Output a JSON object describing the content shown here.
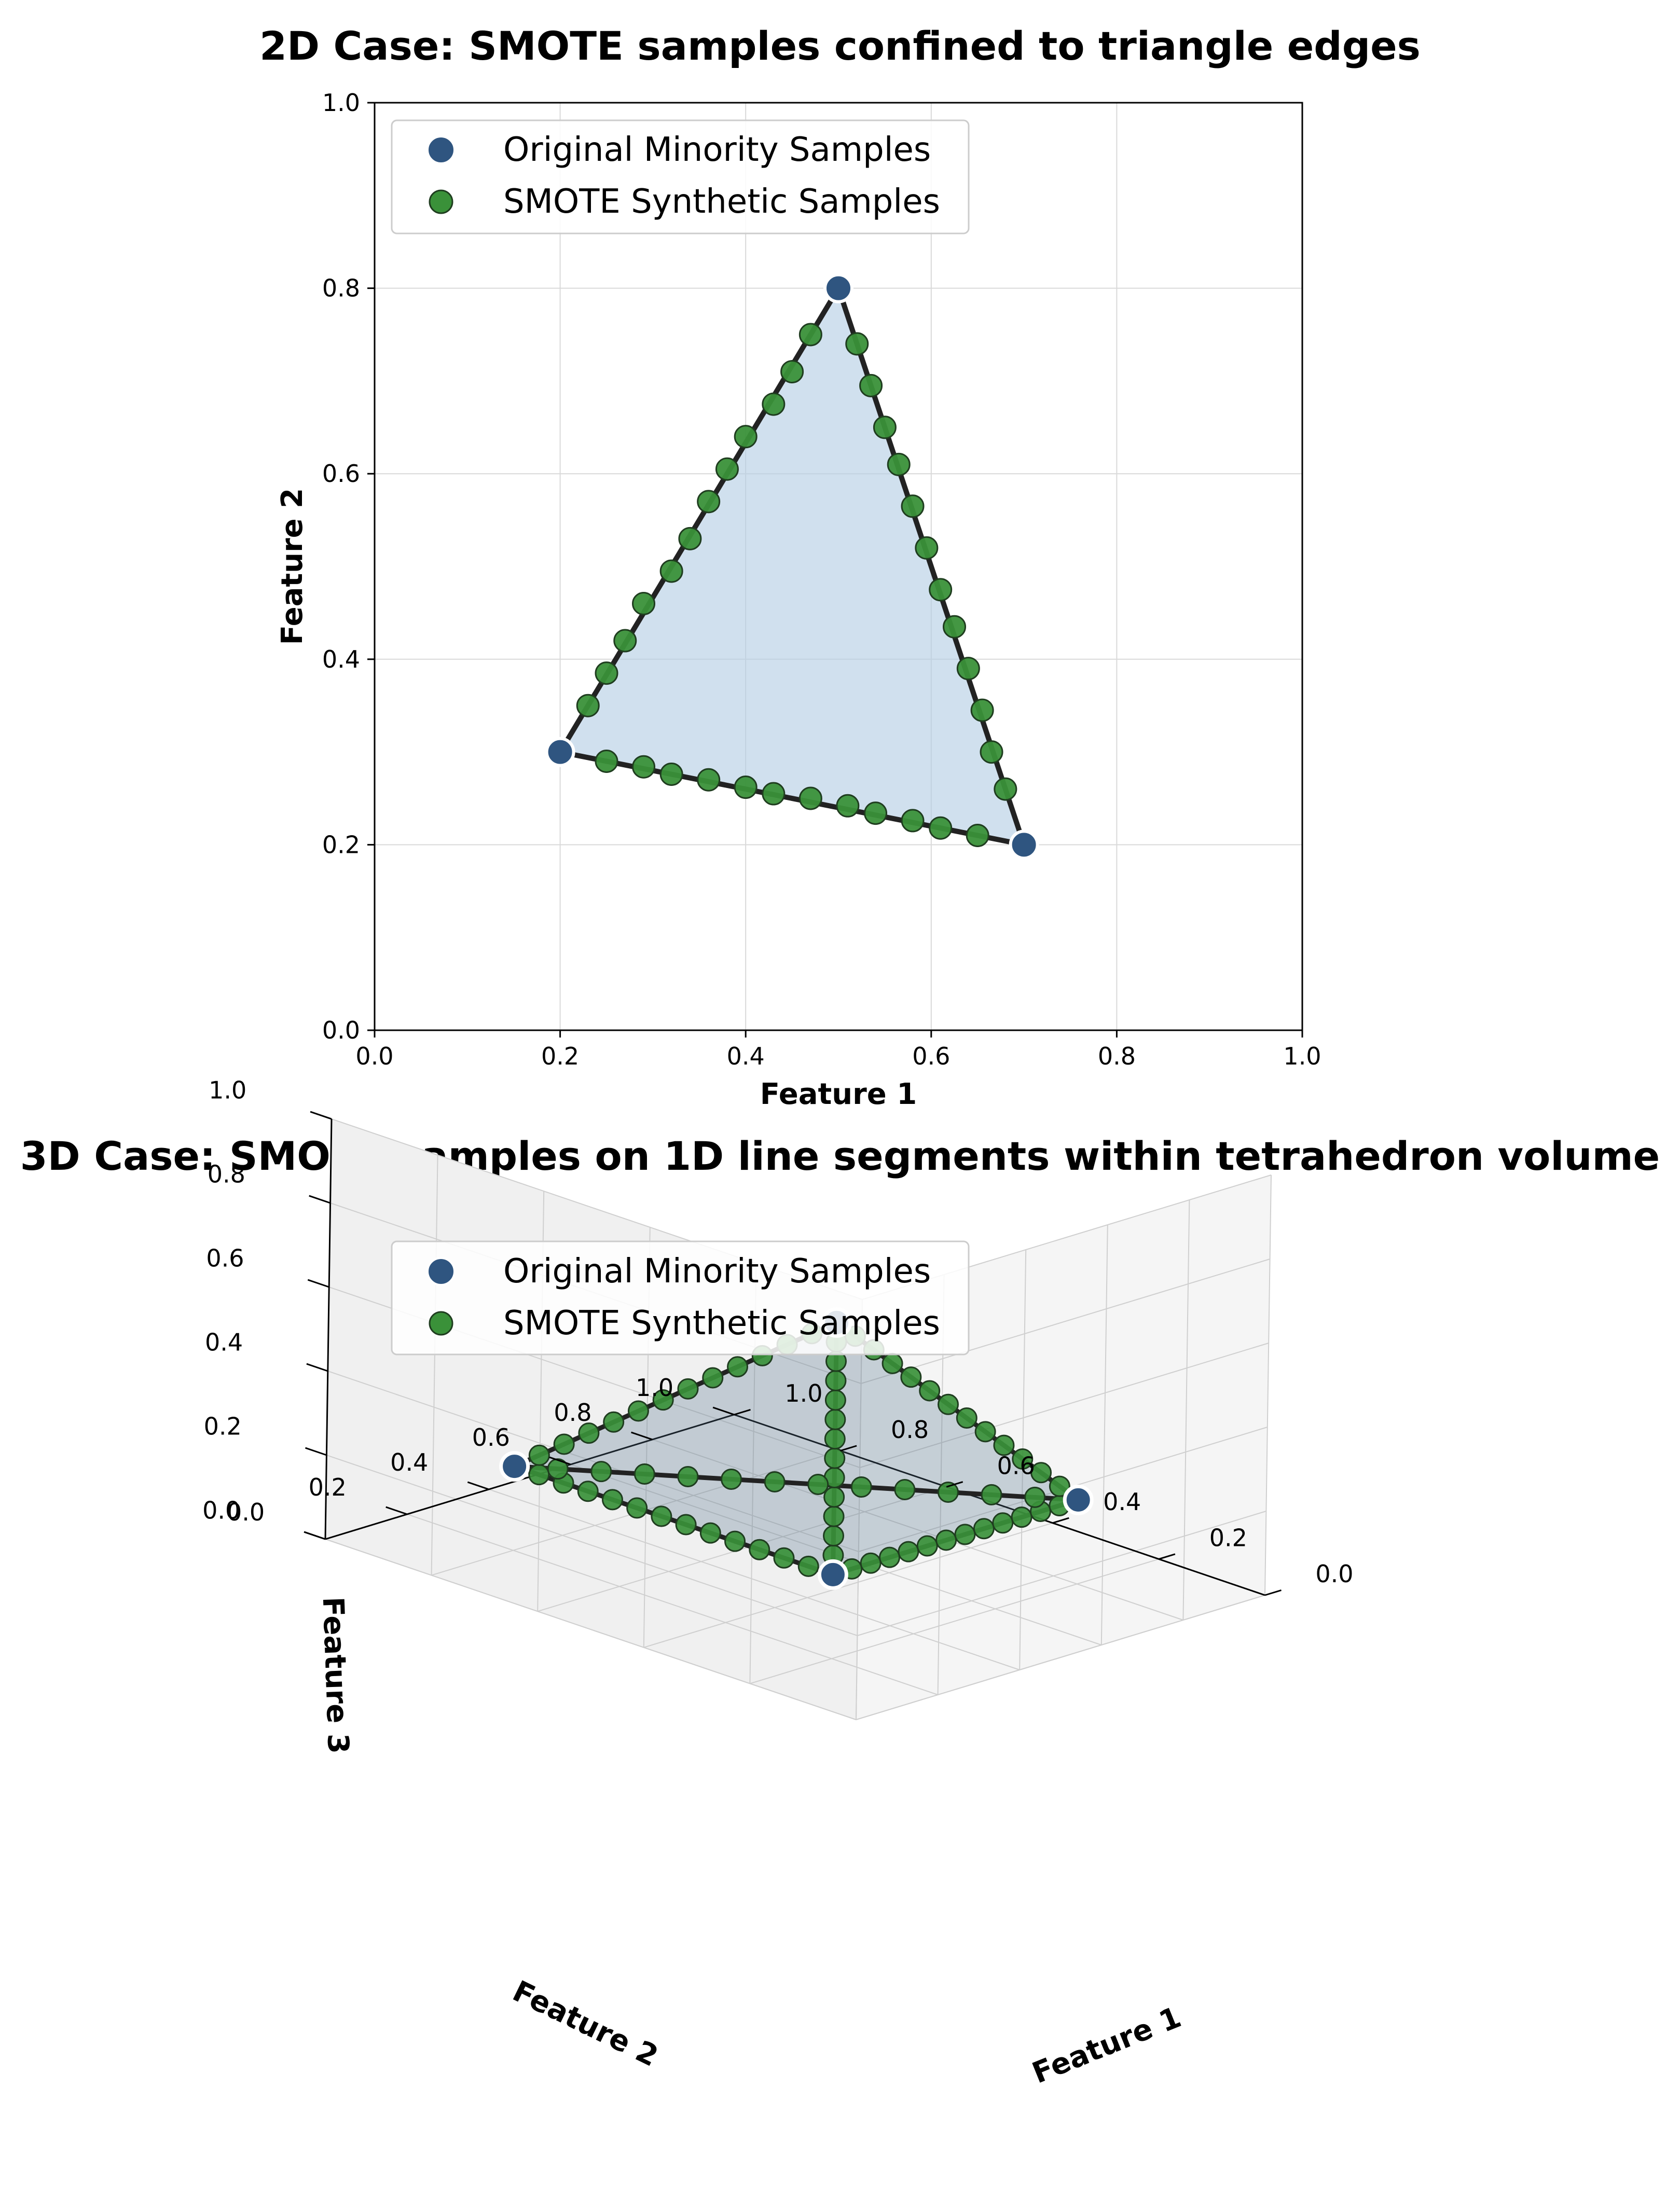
{
  "colors": {
    "original": "#2f5580",
    "synthetic": "#3a9139",
    "edge": "#222222",
    "fill2d": "#b3cde3",
    "fill3d": "#5a7691",
    "grid": "#d9d9d9"
  },
  "chart_data": [
    {
      "type": "scatter",
      "title": "2D Case: SMOTE samples confined to triangle edges",
      "xlabel": "Feature 1",
      "ylabel": "Feature 2",
      "xlim": [
        0.0,
        1.0
      ],
      "ylim": [
        0.0,
        1.0
      ],
      "xticks": [
        "0.0",
        "0.2",
        "0.4",
        "0.6",
        "0.8",
        "1.0"
      ],
      "yticks": [
        "0.0",
        "0.2",
        "0.4",
        "0.6",
        "0.8",
        "1.0"
      ],
      "grid": true,
      "legend_position": "upper-left",
      "polygon": [
        [
          0.2,
          0.3
        ],
        [
          0.5,
          0.8
        ],
        [
          0.7,
          0.2
        ]
      ],
      "series": [
        {
          "name": "Original Minority Samples",
          "points": [
            [
              0.2,
              0.3
            ],
            [
              0.5,
              0.8
            ],
            [
              0.7,
              0.2
            ]
          ]
        },
        {
          "name": "SMOTE Synthetic Samples",
          "points": [
            [
              0.23,
              0.35
            ],
            [
              0.25,
              0.385
            ],
            [
              0.27,
              0.42
            ],
            [
              0.29,
              0.46
            ],
            [
              0.32,
              0.495
            ],
            [
              0.34,
              0.53
            ],
            [
              0.36,
              0.57
            ],
            [
              0.38,
              0.605
            ],
            [
              0.4,
              0.64
            ],
            [
              0.43,
              0.675
            ],
            [
              0.45,
              0.71
            ],
            [
              0.47,
              0.75
            ],
            [
              0.52,
              0.74
            ],
            [
              0.535,
              0.695
            ],
            [
              0.55,
              0.65
            ],
            [
              0.565,
              0.61
            ],
            [
              0.58,
              0.565
            ],
            [
              0.595,
              0.52
            ],
            [
              0.61,
              0.475
            ],
            [
              0.625,
              0.435
            ],
            [
              0.64,
              0.39
            ],
            [
              0.655,
              0.345
            ],
            [
              0.665,
              0.3
            ],
            [
              0.68,
              0.26
            ],
            [
              0.25,
              0.29
            ],
            [
              0.29,
              0.284
            ],
            [
              0.32,
              0.276
            ],
            [
              0.36,
              0.27
            ],
            [
              0.4,
              0.262
            ],
            [
              0.43,
              0.255
            ],
            [
              0.47,
              0.25
            ],
            [
              0.51,
              0.242
            ],
            [
              0.54,
              0.234
            ],
            [
              0.58,
              0.226
            ],
            [
              0.61,
              0.218
            ],
            [
              0.65,
              0.21
            ]
          ]
        }
      ]
    },
    {
      "type": "scatter",
      "title": "3D Case: SMOTE samples on 1D line segments within tetrahedron volume",
      "xlabel": "Feature 1",
      "ylabel": "Feature 2",
      "zlabel": "Feature 3",
      "xlim": [
        0.0,
        1.0
      ],
      "ylim": [
        0.0,
        1.0
      ],
      "zlim": [
        0.0,
        1.0
      ],
      "xticks": [
        "0.0",
        "0.2",
        "0.4",
        "0.6",
        "0.8",
        "1.0"
      ],
      "yticks": [
        "0.0",
        "0.2",
        "0.4",
        "0.6",
        "0.8",
        "1.0"
      ],
      "zticks": [
        "0.0",
        "0.2",
        "0.4",
        "0.6",
        "0.8",
        "1.0"
      ],
      "grid": true,
      "legend_position": "top",
      "vertices": [
        [
          0.2,
          0.2,
          0.2
        ],
        [
          0.8,
          0.2,
          0.2
        ],
        [
          0.2,
          0.8,
          0.2
        ],
        [
          0.2,
          0.2,
          0.8
        ]
      ],
      "edges": [
        [
          0,
          1
        ],
        [
          0,
          2
        ],
        [
          0,
          3
        ],
        [
          1,
          2
        ],
        [
          1,
          3
        ],
        [
          2,
          3
        ]
      ],
      "samples_per_edge": 12,
      "series": [
        {
          "name": "Original Minority Samples"
        },
        {
          "name": "SMOTE Synthetic Samples"
        }
      ]
    }
  ]
}
